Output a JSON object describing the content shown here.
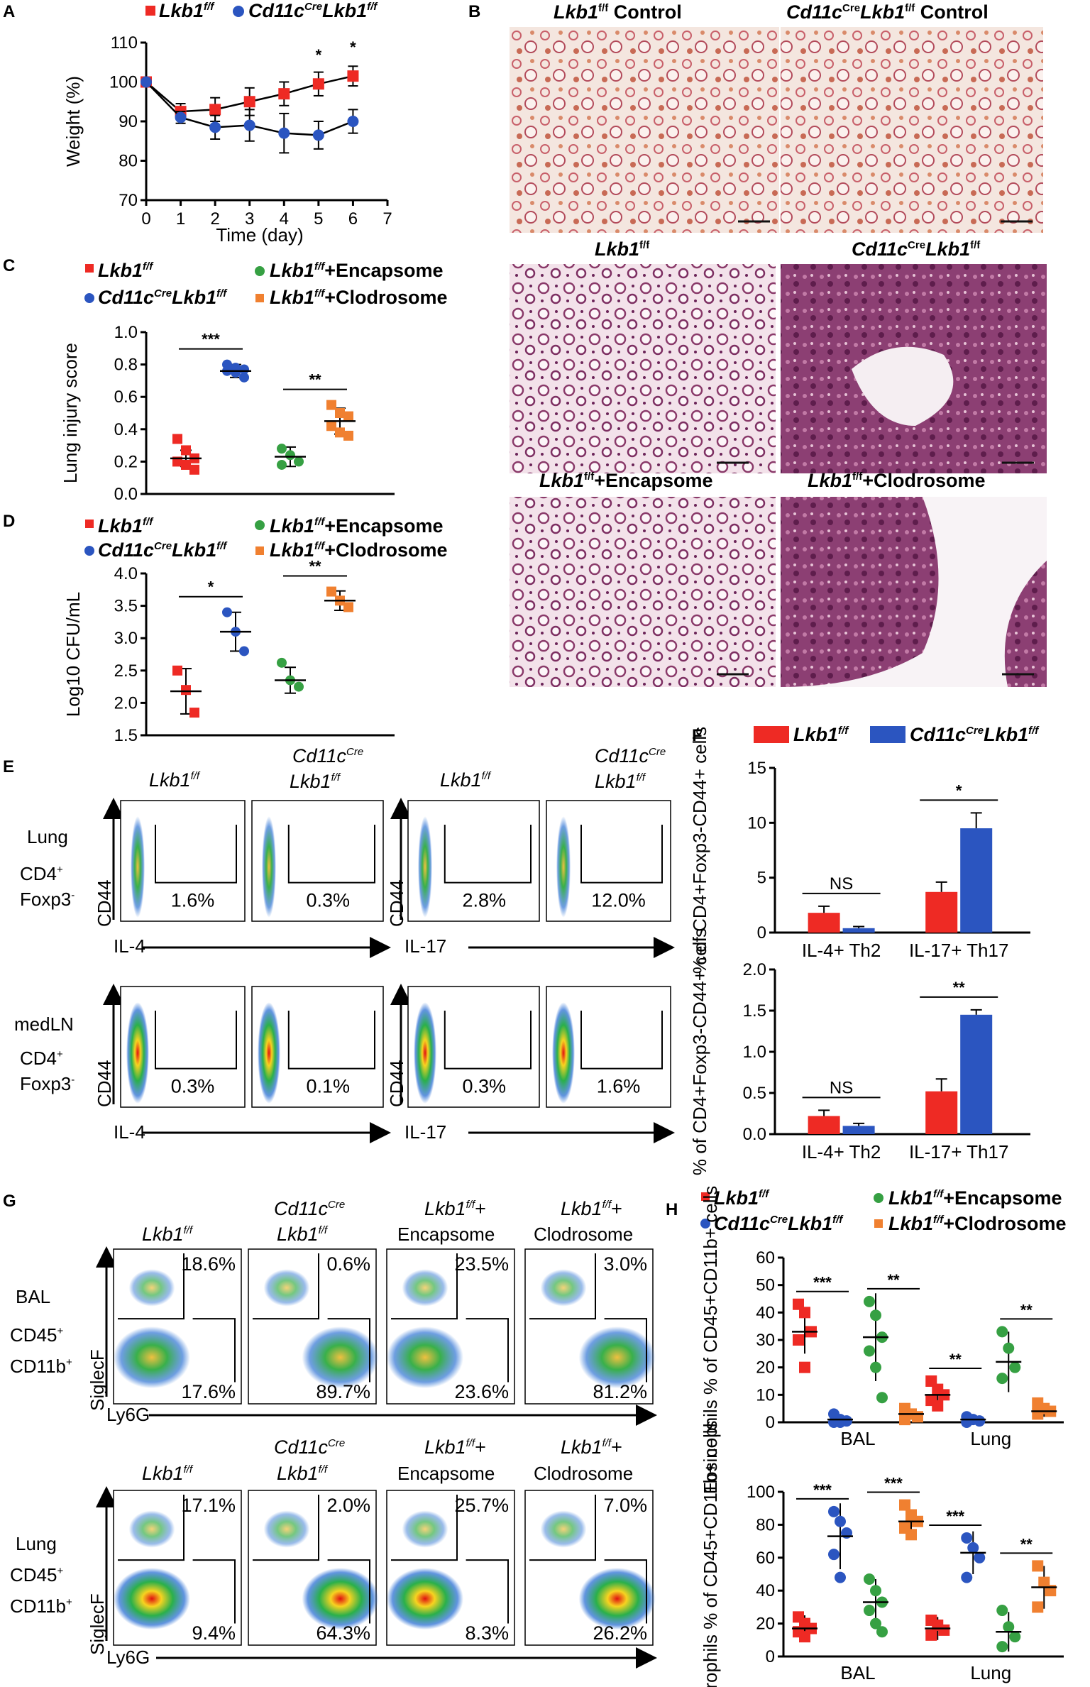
{
  "colors": {
    "lkb1": "#ee2a24",
    "cre": "#2b55c0",
    "enc": "#36a043",
    "clod": "#f08030",
    "axis": "#000000"
  },
  "panel_labels": {
    "A": "A",
    "B": "B",
    "C": "C",
    "D": "D",
    "E": "E",
    "F": "F",
    "G": "G",
    "H": "H"
  },
  "legend_A": {
    "lkb1": "Lkb1",
    "lkb1_sup": "f/f",
    "cre_pre": "Cd11c",
    "cre_sup1": "Cre",
    "cre_mid": "Lkb1",
    "cre_sup2": "f/f"
  },
  "legend_groups": {
    "lkb1": "Lkb1",
    "ff": "f/f",
    "cre": "Cd11c",
    "cre_sup": "Cre",
    "enc_suffix": "+Encapsome",
    "clod_suffix": "+Clodrosome"
  },
  "histology": {
    "titles": [
      "Control",
      "Control",
      "",
      "",
      "+Encapsome",
      "+Clodrosome"
    ]
  },
  "flow_E": {
    "lung_label": "Lung",
    "medln_label": "medLN",
    "cd4": "CD4",
    "cd4_sup": "+",
    "foxp3": "Foxp3",
    "foxp3_sup": "-",
    "yaxis": "CD44",
    "xaxis_il4": "IL-4",
    "xaxis_il17": "IL-17",
    "lung_pcts": [
      "1.6%",
      "0.3%",
      "2.8%",
      "12.0%"
    ],
    "medln_pcts": [
      "0.3%",
      "0.1%",
      "0.3%",
      "1.6%"
    ]
  },
  "flow_G": {
    "bal_label": "BAL",
    "lung_label": "Lung",
    "cd45": "CD45",
    "cd11b": "CD11b",
    "plus": "+",
    "yaxis": "SiglecF",
    "xaxis": "Ly6G",
    "col3": "+",
    "col3b": "Encapsome",
    "col4b": "Clodrosome",
    "bal_top": [
      "18.6%",
      "0.6%",
      "23.5%",
      "3.0%"
    ],
    "bal_bottom": [
      "17.6%",
      "89.7%",
      "23.6%",
      "81.2%"
    ],
    "lung_top": [
      "17.1%",
      "2.0%",
      "25.7%",
      "7.0%"
    ],
    "lung_bottom": [
      "9.4%",
      "64.3%",
      "8.3%",
      "26.2%"
    ]
  },
  "chart_data": [
    {
      "panel": "A",
      "type": "line",
      "xlabel": "Time (day)",
      "ylabel": "Weight (%)",
      "xlim": [
        0,
        7
      ],
      "ylim": [
        70,
        110
      ],
      "xticks": [
        0,
        1,
        2,
        3,
        4,
        5,
        6,
        7
      ],
      "yticks": [
        70,
        80,
        90,
        100,
        110
      ],
      "series": [
        {
          "name": "Lkb1 f/f",
          "x": [
            0,
            1,
            2,
            3,
            4,
            5,
            6
          ],
          "y": [
            100,
            92.5,
            93,
            95,
            97,
            99.5,
            101.5
          ],
          "err": [
            0,
            2,
            3,
            3.5,
            3,
            3,
            2.5
          ]
        },
        {
          "name": "Cd11cCre Lkb1 f/f",
          "x": [
            0,
            1,
            2,
            3,
            4,
            5,
            6
          ],
          "y": [
            100,
            91,
            88.5,
            89,
            87,
            86.5,
            90
          ],
          "err": [
            0,
            1.5,
            3,
            4,
            5,
            3.5,
            3
          ]
        }
      ],
      "significance": [
        {
          "x": 5,
          "label": "*"
        },
        {
          "x": 6,
          "label": "*"
        }
      ]
    },
    {
      "panel": "C",
      "type": "scatter",
      "ylabel": "Lung injury score",
      "ylim": [
        0,
        1.0
      ],
      "yticks": [
        "0.0",
        "0.2",
        "0.4",
        "0.6",
        "0.8",
        "1.0"
      ],
      "groups": [
        "Lkb1 f/f",
        "Cd11cCre Lkb1 f/f",
        "Lkb1 f/f+Encapsome",
        "Lkb1 f/f+Clodrosome"
      ],
      "means": [
        0.22,
        0.76,
        0.23,
        0.45
      ],
      "sd": [
        0.05,
        0.04,
        0.06,
        0.08
      ],
      "points": [
        [
          0.34,
          0.27,
          0.22,
          0.2,
          0.18,
          0.15
        ],
        [
          0.8,
          0.78,
          0.77,
          0.76,
          0.75,
          0.72
        ],
        [
          0.28,
          0.24,
          0.2,
          0.18
        ],
        [
          0.55,
          0.5,
          0.48,
          0.42,
          0.38,
          0.36
        ]
      ],
      "significance": [
        {
          "from": 0,
          "to": 1,
          "label": "***"
        },
        {
          "from": 2,
          "to": 3,
          "label": "**"
        }
      ]
    },
    {
      "panel": "D",
      "type": "scatter",
      "ylabel": "Log10 CFU/mL",
      "ylim": [
        1.5,
        4.0
      ],
      "yticks": [
        "1.5",
        "2.0",
        "2.5",
        "3.0",
        "3.5",
        "4.0"
      ],
      "groups": [
        "Lkb1 f/f",
        "Cd11cCre Lkb1 f/f",
        "Lkb1 f/f+Encapsome",
        "Lkb1 f/f+Clodrosome"
      ],
      "means": [
        2.18,
        3.1,
        2.35,
        3.58
      ],
      "sd": [
        0.35,
        0.3,
        0.2,
        0.15
      ],
      "points": [
        [
          2.5,
          2.2,
          1.85
        ],
        [
          3.4,
          3.1,
          2.8
        ],
        [
          2.62,
          2.35,
          2.25
        ],
        [
          3.72,
          3.58,
          3.48
        ]
      ],
      "significance": [
        {
          "from": 0,
          "to": 1,
          "label": "*"
        },
        {
          "from": 2,
          "to": 3,
          "label": "**"
        }
      ]
    },
    {
      "panel": "F-top",
      "type": "bar",
      "ylabel": "% of CD4+Foxp3-CD44+ cells",
      "categories": [
        "IL-4+ Th2",
        "IL-17+ Th17"
      ],
      "ylim": [
        0,
        15
      ],
      "yticks": [
        0,
        5,
        10,
        15
      ],
      "series": [
        {
          "name": "Lkb1 f/f",
          "values": [
            1.8,
            3.7
          ],
          "err": [
            0.6,
            0.9
          ]
        },
        {
          "name": "Cd11cCre Lkb1 f/f",
          "values": [
            0.4,
            9.5
          ],
          "err": [
            0.15,
            1.4
          ]
        }
      ],
      "significance": [
        {
          "category": 0,
          "label": "NS"
        },
        {
          "category": 1,
          "label": "*"
        }
      ]
    },
    {
      "panel": "F-bottom",
      "type": "bar",
      "ylabel": "% of CD4+Foxp3-CD44+ cells",
      "categories": [
        "IL-4+ Th2",
        "IL-17+ Th17"
      ],
      "ylim": [
        0,
        2.0
      ],
      "yticks": [
        "0.0",
        "0.5",
        "1.0",
        "1.5",
        "2.0"
      ],
      "series": [
        {
          "name": "Lkb1 f/f",
          "values": [
            0.22,
            0.52
          ],
          "err": [
            0.07,
            0.15
          ]
        },
        {
          "name": "Cd11cCre Lkb1 f/f",
          "values": [
            0.1,
            1.45
          ],
          "err": [
            0.03,
            0.06
          ]
        }
      ],
      "significance": [
        {
          "category": 0,
          "label": "NS"
        },
        {
          "category": 1,
          "label": "**"
        }
      ]
    },
    {
      "panel": "H-top",
      "type": "scatter",
      "ylabel": "Eosinophils % of CD45+CD11b+ cells",
      "categories": [
        "BAL",
        "Lung"
      ],
      "ylim": [
        0,
        60
      ],
      "yticks": [
        0,
        10,
        20,
        30,
        40,
        50,
        60
      ],
      "groups": [
        "Lkb1 f/f",
        "Cd11cCre Lkb1 f/f",
        "Lkb1 f/f+Encapsome",
        "Lkb1 f/f+Clodrosome"
      ],
      "means": [
        [
          33,
          1,
          31,
          3
        ],
        [
          10,
          1,
          22,
          4
        ]
      ],
      "sd": [
        [
          8,
          1,
          16,
          2
        ],
        [
          4,
          0.5,
          11,
          2
        ]
      ],
      "points": [
        [
          [
            43,
            40,
            33,
            30,
            20
          ],
          [
            3,
            1,
            0.5,
            0,
            0
          ],
          [
            44,
            39,
            31,
            26,
            20,
            9
          ],
          [
            5,
            3,
            2,
            1
          ]
        ],
        [
          [
            15,
            12,
            10,
            8,
            6
          ],
          [
            2,
            1,
            0.5,
            0
          ],
          [
            33,
            27,
            20,
            16
          ],
          [
            7,
            5,
            4,
            3
          ]
        ]
      ],
      "significance": [
        {
          "cat": 0,
          "pair": [
            0,
            1
          ],
          "label": "***"
        },
        {
          "cat": 0,
          "pair": [
            2,
            3
          ],
          "label": "**"
        },
        {
          "cat": 1,
          "pair": [
            0,
            1
          ],
          "label": "**"
        },
        {
          "cat": 1,
          "pair": [
            2,
            3
          ],
          "label": "**"
        }
      ]
    },
    {
      "panel": "H-bottom",
      "type": "scatter",
      "ylabel": "Neutrophils % of CD45+CD11b+ cells",
      "categories": [
        "BAL",
        "Lung"
      ],
      "ylim": [
        0,
        100
      ],
      "yticks": [
        0,
        20,
        40,
        60,
        80,
        100
      ],
      "groups": [
        "Lkb1 f/f",
        "Cd11cCre Lkb1 f/f",
        "Lkb1 f/f+Encapsome",
        "Lkb1 f/f+Clodrosome"
      ],
      "means": [
        [
          17,
          73,
          33,
          82
        ],
        [
          17,
          63,
          15,
          42
        ]
      ],
      "sd": [
        [
          8,
          20,
          14,
          7
        ],
        [
          7,
          13,
          12,
          13
        ]
      ],
      "points": [
        [
          [
            24,
            20,
            17,
            15,
            12
          ],
          [
            88,
            82,
            75,
            62,
            48
          ],
          [
            47,
            40,
            33,
            28,
            20,
            15
          ],
          [
            92,
            86,
            82,
            78,
            74
          ]
        ],
        [
          [
            22,
            19,
            16,
            13
          ],
          [
            72,
            66,
            60,
            48
          ],
          [
            28,
            18,
            12,
            6
          ],
          [
            55,
            45,
            40,
            30
          ]
        ]
      ],
      "significance": [
        {
          "cat": 0,
          "pair": [
            0,
            1
          ],
          "label": "***"
        },
        {
          "cat": 0,
          "pair": [
            2,
            3
          ],
          "label": "***"
        },
        {
          "cat": 1,
          "pair": [
            0,
            1
          ],
          "label": "***"
        },
        {
          "cat": 1,
          "pair": [
            2,
            3
          ],
          "label": "**"
        }
      ]
    }
  ]
}
